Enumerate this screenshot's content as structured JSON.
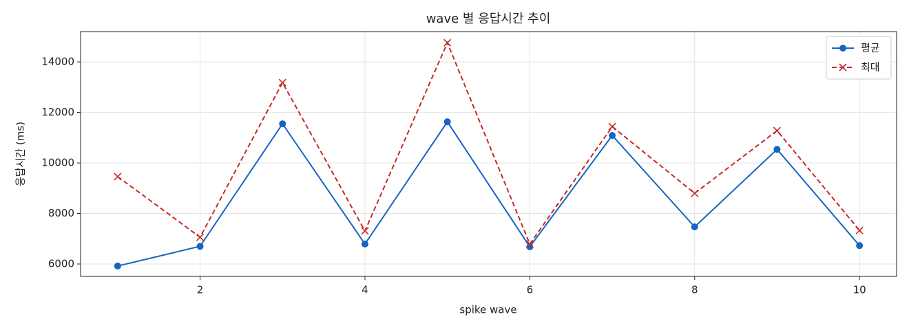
{
  "chart_data": {
    "type": "line",
    "title": "wave 별 응답시간 추이",
    "x_label": "spike wave",
    "y_label": "응답시간 (ms)",
    "x": [
      1,
      2,
      3,
      4,
      5,
      6,
      7,
      8,
      9,
      10
    ],
    "series": [
      {
        "name": "평균",
        "color": "#1565c0",
        "linestyle": "solid",
        "marker": "o",
        "values": [
          5920,
          6700,
          11550,
          6790,
          11630,
          6680,
          11090,
          7470,
          10540,
          6730
        ]
      },
      {
        "name": "최대",
        "color": "#c62828",
        "linestyle": "dashed",
        "marker": "x",
        "values": [
          9460,
          7060,
          13180,
          7310,
          14760,
          6790,
          11440,
          8800,
          11280,
          7330
        ]
      }
    ],
    "xlim": [
      0.55,
      10.45
    ],
    "ylim": [
      5510,
      15200
    ],
    "xticks": [
      2,
      4,
      6,
      8,
      10
    ],
    "yticks": [
      6000,
      8000,
      10000,
      12000,
      14000
    ],
    "grid": true,
    "legend": "upper right"
  }
}
